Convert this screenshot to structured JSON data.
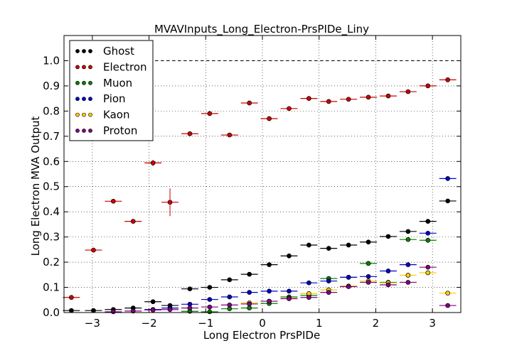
{
  "chart_data": {
    "type": "scatter",
    "title": "MVAVInputs_Long_Electron-PrsPIDe_Liny",
    "xlabel": "Long Electron PrsPIDe",
    "ylabel": "Long Electron MVA Output",
    "xlim": [
      -3.5,
      3.5
    ],
    "ylim": [
      0.0,
      1.1
    ],
    "xticks": [
      -3,
      -2,
      -1,
      0,
      1,
      2,
      3
    ],
    "xtick_labels": [
      "−3",
      "−2",
      "−1",
      "0",
      "1",
      "2",
      "3"
    ],
    "yticks": [
      0.0,
      0.1,
      0.2,
      0.3,
      0.4,
      0.5,
      0.6,
      0.7,
      0.8,
      0.9,
      1.0
    ],
    "ytick_labels": [
      "0.0",
      "0.1",
      "0.2",
      "0.3",
      "0.4",
      "0.5",
      "0.6",
      "0.7",
      "0.8",
      "0.9",
      "1.0"
    ],
    "grid": true,
    "reference_line_y": 1.0,
    "legend_position": "top-left",
    "bins": [
      -3.35,
      -2.95,
      -2.65,
      -2.35,
      -2.05,
      -1.75,
      -1.45,
      -1.15,
      -0.85,
      -0.55,
      -0.25,
      0.05,
      0.35,
      0.65,
      0.95,
      1.25,
      1.55,
      1.85,
      2.15,
      2.45,
      2.75,
      3.05,
      3.35
    ],
    "bin_half_width": 0.15,
    "series": [
      {
        "name": "Ghost",
        "color": "#000000",
        "points": [
          [
            -3.37,
            0.008
          ],
          [
            -2.98,
            0.008
          ],
          [
            -2.63,
            0.012
          ],
          [
            -2.28,
            0.018
          ],
          [
            -1.93,
            0.043
          ],
          [
            -1.63,
            0.028
          ],
          [
            -1.28,
            0.094
          ],
          [
            -0.93,
            0.1
          ],
          [
            -0.58,
            0.13
          ],
          [
            -0.23,
            0.152
          ],
          [
            0.12,
            0.19
          ],
          [
            0.47,
            0.225
          ],
          [
            0.82,
            0.268
          ],
          [
            1.17,
            0.255
          ],
          [
            1.52,
            0.268
          ],
          [
            1.87,
            0.28
          ],
          [
            2.22,
            0.302
          ],
          [
            2.57,
            0.322
          ],
          [
            2.92,
            0.362
          ],
          [
            3.27,
            0.443
          ]
        ]
      },
      {
        "name": "Electron",
        "color": "#cc0000",
        "points": [
          [
            -3.37,
            0.06
          ],
          [
            -2.98,
            0.248
          ],
          [
            -2.63,
            0.442
          ],
          [
            -2.28,
            0.362
          ],
          [
            -1.93,
            0.594
          ],
          [
            -1.63,
            0.438
          ],
          [
            -1.28,
            0.71
          ],
          [
            -0.93,
            0.79
          ],
          [
            -0.58,
            0.705
          ],
          [
            -0.23,
            0.832
          ],
          [
            0.12,
            0.77
          ],
          [
            0.47,
            0.81
          ],
          [
            0.82,
            0.85
          ],
          [
            1.17,
            0.838
          ],
          [
            1.52,
            0.847
          ],
          [
            1.87,
            0.855
          ],
          [
            2.22,
            0.86
          ],
          [
            2.57,
            0.877
          ],
          [
            2.92,
            0.9
          ],
          [
            3.27,
            0.924
          ]
        ]
      },
      {
        "name": "Muon",
        "color": "#007f00",
        "points": [
          [
            -1.28,
            0.005
          ],
          [
            -0.93,
            0.003
          ],
          [
            -0.58,
            0.015
          ],
          [
            -0.23,
            0.018
          ],
          [
            0.12,
            0.036
          ],
          [
            0.47,
            0.062
          ],
          [
            0.82,
            0.068
          ],
          [
            1.17,
            0.135
          ],
          [
            1.52,
            0.14
          ],
          [
            1.87,
            0.195
          ],
          [
            2.22,
            0.12
          ],
          [
            2.57,
            0.29
          ],
          [
            2.92,
            0.287
          ]
        ]
      },
      {
        "name": "Pion",
        "color": "#0000cc",
        "points": [
          [
            -1.93,
            0.012
          ],
          [
            -1.63,
            0.018
          ],
          [
            -1.28,
            0.033
          ],
          [
            -0.93,
            0.052
          ],
          [
            -0.58,
            0.062
          ],
          [
            -0.23,
            0.08
          ],
          [
            0.12,
            0.085
          ],
          [
            0.47,
            0.085
          ],
          [
            0.82,
            0.118
          ],
          [
            1.17,
            0.125
          ],
          [
            1.52,
            0.14
          ],
          [
            1.87,
            0.143
          ],
          [
            2.22,
            0.165
          ],
          [
            2.57,
            0.19
          ],
          [
            2.92,
            0.315
          ],
          [
            3.27,
            0.532
          ]
        ]
      },
      {
        "name": "Kaon",
        "color": "#ffcc00",
        "points": [
          [
            -0.23,
            0.038
          ],
          [
            0.12,
            0.045
          ],
          [
            0.47,
            0.057
          ],
          [
            0.82,
            0.075
          ],
          [
            1.17,
            0.09
          ],
          [
            1.52,
            0.105
          ],
          [
            1.87,
            0.125
          ],
          [
            2.22,
            0.118
          ],
          [
            2.57,
            0.148
          ],
          [
            2.92,
            0.158
          ],
          [
            3.27,
            0.077
          ]
        ]
      },
      {
        "name": "Proton",
        "color": "#800080",
        "points": [
          [
            -2.63,
            0.003
          ],
          [
            -2.28,
            0.006
          ],
          [
            -1.93,
            0.01
          ],
          [
            -1.63,
            0.012
          ],
          [
            -1.28,
            0.018
          ],
          [
            -0.93,
            0.022
          ],
          [
            -0.58,
            0.03
          ],
          [
            -0.23,
            0.034
          ],
          [
            0.12,
            0.045
          ],
          [
            0.47,
            0.055
          ],
          [
            0.82,
            0.06
          ],
          [
            1.17,
            0.08
          ],
          [
            1.52,
            0.103
          ],
          [
            1.87,
            0.12
          ],
          [
            2.22,
            0.11
          ],
          [
            2.57,
            0.12
          ],
          [
            2.92,
            0.18
          ],
          [
            3.27,
            0.028
          ]
        ]
      }
    ],
    "electron_yerr": [
      [
        -1.63,
        0.055
      ],
      [
        -1.93,
        0.012
      ],
      [
        -2.28,
        0.01
      ],
      [
        -2.98,
        0.01
      ]
    ]
  }
}
